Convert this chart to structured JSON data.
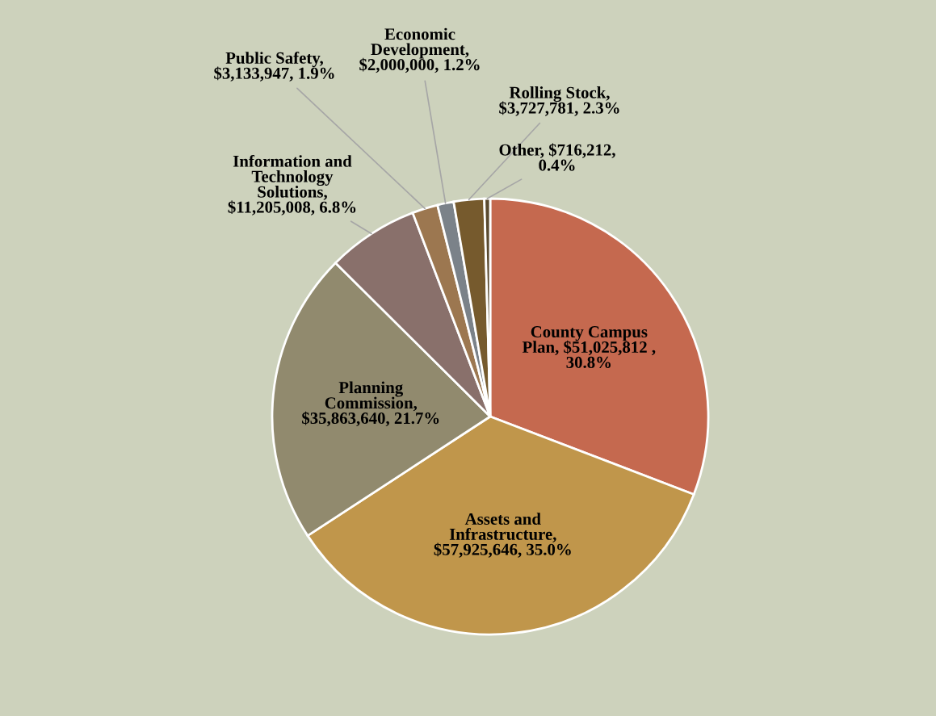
{
  "chart_data": {
    "type": "pie",
    "categories": [
      "County Campus\nPlan",
      "Assets and\nInfrastructure",
      "Planning\nCommission",
      "Information and\nTechnology\nSolutions",
      "Public Safety",
      "Economic\nDevelopment",
      "Rolling Stock",
      "Other"
    ],
    "values": [
      51025812,
      57925646,
      35863640,
      11205008,
      3133947,
      2000000,
      3727781,
      716212
    ],
    "value_labels": [
      ", $51,025,812 ,\n30.8%",
      ",\n$57,925,646, 35.0%",
      ",\n$35,863,640, 21.7%",
      ",\n$11,205,008, 6.8%",
      ",\n$3,133,947, 1.9%",
      ",\n$2,000,000, 1.2%",
      ",\n$3,727,781, 2.3%",
      ", $716,212,\n0.4%"
    ],
    "colors": [
      "#c5694f",
      "#c0964b",
      "#918a6e",
      "#89706b",
      "#9c7750",
      "#7b8289",
      "#765a2d",
      "#5a4a30"
    ],
    "legend": false
  }
}
